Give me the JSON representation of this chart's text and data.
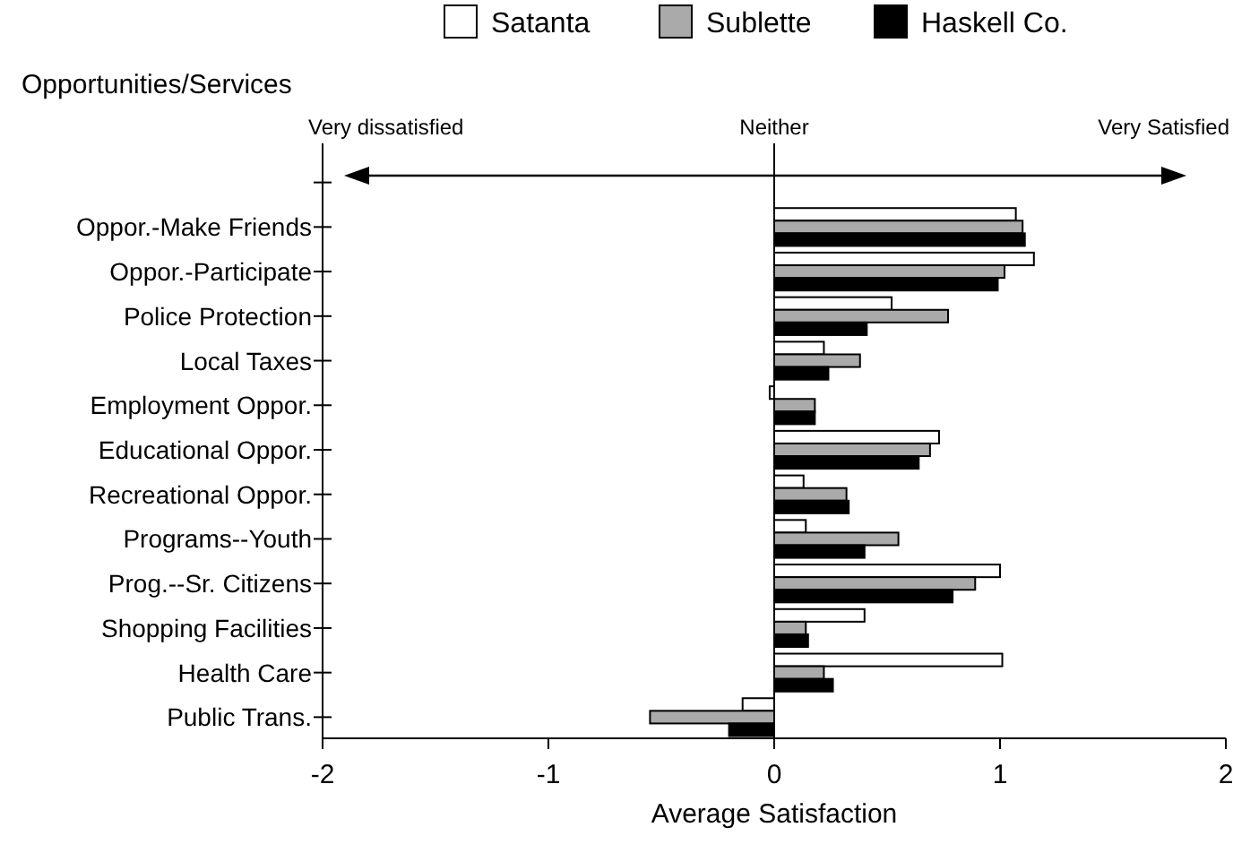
{
  "chart_data": {
    "type": "bar",
    "orientation": "horizontal",
    "xlabel": "Average Satisfaction",
    "ylabel": "Opportunities/Services",
    "categories": [
      null,
      "Oppor.-Make Friends",
      "Oppor.-Participate",
      "Police Protection",
      "Local Taxes",
      "Employment Oppor.",
      "Educational Oppor.",
      "Recreational Oppor.",
      "Programs--Youth",
      "Prog.--Sr. Citizens",
      "Shopping Facilities",
      "Health Care",
      "Public Trans."
    ],
    "series": [
      {
        "name": "Satanta",
        "color": "#ffffff",
        "values": [
          null,
          1.07,
          1.15,
          0.52,
          0.22,
          -0.02,
          0.73,
          0.13,
          0.14,
          1.0,
          0.4,
          1.01,
          -0.14
        ]
      },
      {
        "name": "Sublette",
        "color": "#aaaaaa",
        "values": [
          null,
          1.1,
          1.02,
          0.77,
          0.38,
          0.18,
          0.69,
          0.32,
          0.55,
          0.89,
          0.14,
          0.22,
          -0.55
        ]
      },
      {
        "name": "Haskell Co.",
        "color": "#000000",
        "values": [
          null,
          1.11,
          0.99,
          0.41,
          0.24,
          0.18,
          0.64,
          0.33,
          0.4,
          0.79,
          0.15,
          0.26,
          -0.2
        ]
      }
    ],
    "xlim": [
      -2,
      2
    ],
    "xticks": [
      -2,
      -1,
      0,
      1,
      2
    ],
    "ref_lines": [
      {
        "axis": "x",
        "value": 0
      }
    ],
    "annotations": [
      "Very dissatisfied",
      "Neither",
      "Very Satisfied"
    ],
    "legend": "top"
  }
}
